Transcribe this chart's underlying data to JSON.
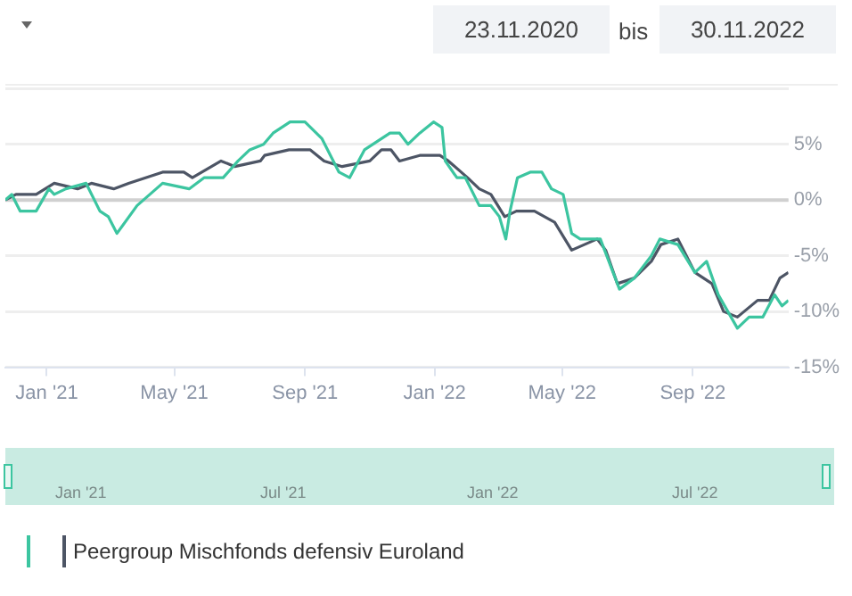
{
  "chart_data": {
    "type": "line",
    "xlim": [
      "2020-11-23",
      "2022-11-30"
    ],
    "xticks": [
      {
        "value": "2021-01-01",
        "label": "Jan '21"
      },
      {
        "value": "2021-05-01",
        "label": "May '21"
      },
      {
        "value": "2021-09-01",
        "label": "Sep '21"
      },
      {
        "value": "2022-01-01",
        "label": "Jan '22"
      },
      {
        "value": "2022-05-01",
        "label": "May '22"
      },
      {
        "value": "2022-09-01",
        "label": "Sep '22"
      }
    ],
    "ylim": [
      -15,
      10
    ],
    "yticks": [
      {
        "value": -15,
        "label": "-15%"
      },
      {
        "value": -10,
        "label": "-10%"
      },
      {
        "value": -5,
        "label": "-5%"
      },
      {
        "value": 0,
        "label": "0%"
      },
      {
        "value": 5,
        "label": "5%"
      },
      {
        "value": 10,
        "label": null
      }
    ],
    "grid": "y",
    "marker": "none",
    "line_style": "solid",
    "legend": "bottom left",
    "ref_lines": [
      {
        "axis": "y",
        "value": 0,
        "color": "#d0d0d0"
      }
    ],
    "annotations": [
      "23.11.2020",
      "bis",
      "30.11.2022",
      "Jan '21",
      "Jul '21",
      "Jan '22",
      "Jul '22"
    ],
    "series": [
      {
        "color": "#3cc5a0",
        "x": [
          "2020-11-23",
          "2020-11-29",
          "2020-12-07",
          "2020-12-22",
          "2021-01-03",
          "2021-01-08",
          "2021-01-19",
          "2021-02-07",
          "2021-02-20",
          "2021-02-28",
          "2021-03-08",
          "2021-03-27",
          "2021-04-20",
          "2021-05-15",
          "2021-05-29",
          "2021-06-16",
          "2021-06-30",
          "2021-07-11",
          "2021-07-24",
          "2021-08-02",
          "2021-08-18",
          "2021-09-01",
          "2021-09-17",
          "2021-10-03",
          "2021-10-13",
          "2021-10-27",
          "2021-11-20",
          "2021-11-29",
          "2021-12-07",
          "2021-12-18",
          "2021-12-31",
          "2022-01-08",
          "2022-01-11",
          "2022-01-22",
          "2022-01-30",
          "2022-02-12",
          "2022-02-23",
          "2022-03-03",
          "2022-03-09",
          "2022-03-13",
          "2022-03-20",
          "2022-04-01",
          "2022-04-12",
          "2022-04-21",
          "2022-05-02",
          "2022-05-10",
          "2022-05-18",
          "2022-06-06",
          "2022-06-24",
          "2022-07-08",
          "2022-07-24",
          "2022-08-01",
          "2022-08-18",
          "2022-09-03",
          "2022-09-14",
          "2022-09-25",
          "2022-10-13",
          "2022-10-24",
          "2022-11-06",
          "2022-11-17",
          "2022-11-24",
          "2022-11-30"
        ],
        "values": [
          0,
          0.5,
          -1,
          -1,
          1,
          0.5,
          1,
          1.5,
          -1,
          -1.5,
          -3,
          -0.5,
          1.5,
          1,
          2,
          2,
          3.5,
          4.5,
          5,
          6,
          7,
          7,
          5.5,
          2.5,
          2,
          4.5,
          6,
          6,
          5,
          6,
          7,
          6.5,
          3.5,
          2,
          2,
          -0.5,
          -0.5,
          -1.5,
          -3.5,
          -1,
          2,
          2.5,
          2.5,
          1,
          0.5,
          -3,
          -3.5,
          -3.5,
          -8,
          -7,
          -5,
          -3.5,
          -4,
          -6.5,
          -5.5,
          -8.5,
          -11.5,
          -10.5,
          -10.5,
          -8.5,
          -9.5,
          -9
        ]
      },
      {
        "name": "Peergroup Mischfonds defensiv Euroland",
        "color": "#4d5565",
        "x": [
          "2020-11-23",
          "2020-12-03",
          "2020-12-22",
          "2021-01-08",
          "2021-01-30",
          "2021-02-12",
          "2021-03-05",
          "2021-03-19",
          "2021-04-20",
          "2021-05-10",
          "2021-05-18",
          "2021-06-14",
          "2021-06-27",
          "2021-07-21",
          "2021-07-25",
          "2021-08-17",
          "2021-09-06",
          "2021-09-19",
          "2021-10-06",
          "2021-11-01",
          "2021-11-12",
          "2021-11-21",
          "2021-11-29",
          "2021-12-18",
          "2022-01-06",
          "2022-01-14",
          "2022-02-01",
          "2022-02-12",
          "2022-02-23",
          "2022-03-08",
          "2022-03-19",
          "2022-04-05",
          "2022-04-24",
          "2022-05-10",
          "2022-06-03",
          "2022-06-11",
          "2022-06-22",
          "2022-07-08",
          "2022-07-24",
          "2022-08-02",
          "2022-08-18",
          "2022-09-03",
          "2022-09-19",
          "2022-09-30",
          "2022-10-13",
          "2022-11-01",
          "2022-11-12",
          "2022-11-22",
          "2022-11-30"
        ],
        "values": [
          0,
          0.5,
          0.5,
          1.5,
          1,
          1.5,
          1,
          1.5,
          2.5,
          2.5,
          2,
          3.5,
          3,
          3.5,
          4,
          4.5,
          4.5,
          3.5,
          3,
          3.5,
          4.5,
          4.5,
          3.5,
          4,
          4,
          3.5,
          2,
          1,
          0.5,
          -1.5,
          -1,
          -1,
          -2,
          -4.5,
          -3.5,
          -4.5,
          -7.5,
          -7,
          -5.5,
          -4,
          -3.5,
          -6.5,
          -7.5,
          -10,
          -10.5,
          -9,
          -9,
          -7,
          -6.5
        ]
      }
    ]
  }
}
